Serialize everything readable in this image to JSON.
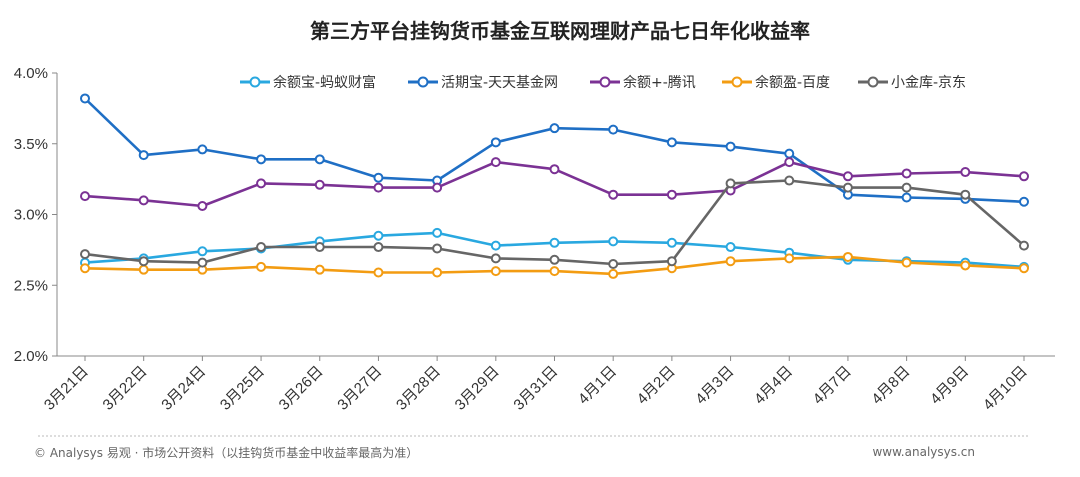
{
  "chart_data": {
    "type": "line",
    "title": "第三方平台挂钩货币基金互联网理财产品七日年化收益率",
    "xlabel": "",
    "ylabel": "",
    "ylim": [
      2.0,
      4.0
    ],
    "yticks": [
      2.0,
      2.5,
      3.0,
      3.5,
      4.0
    ],
    "ytick_labels": [
      "2.0%",
      "2.5%",
      "3.0%",
      "3.5%",
      "4.0%"
    ],
    "grid": false,
    "legend_position": "top",
    "categories": [
      "3月21日",
      "3月22日",
      "3月24日",
      "3月25日",
      "3月26日",
      "3月27日",
      "3月28日",
      "3月29日",
      "3月31日",
      "4月1日",
      "4月2日",
      "4月3日",
      "4月4日",
      "4月7日",
      "4月8日",
      "4月9日",
      "4月10日"
    ],
    "series": [
      {
        "name": "余额宝-蚂蚁财富",
        "color": "#29a8e0",
        "values": [
          2.66,
          2.69,
          2.74,
          2.76,
          2.81,
          2.85,
          2.87,
          2.78,
          2.8,
          2.81,
          2.8,
          2.77,
          2.73,
          2.68,
          2.67,
          2.66,
          2.63
        ]
      },
      {
        "name": "活期宝-天天基金网",
        "color": "#1f6fc5",
        "values": [
          3.82,
          3.42,
          3.46,
          3.39,
          3.39,
          3.26,
          3.24,
          3.51,
          3.61,
          3.6,
          3.51,
          3.48,
          3.43,
          3.14,
          3.12,
          3.11,
          3.09
        ]
      },
      {
        "name": "余额+-腾讯",
        "color": "#7b3294",
        "values": [
          3.13,
          3.1,
          3.06,
          3.22,
          3.21,
          3.19,
          3.19,
          3.37,
          3.32,
          3.14,
          3.14,
          3.17,
          3.37,
          3.27,
          3.29,
          3.3,
          3.27
        ]
      },
      {
        "name": "余额盈-百度",
        "color": "#f39c12",
        "values": [
          2.62,
          2.61,
          2.61,
          2.63,
          2.61,
          2.59,
          2.59,
          2.6,
          2.6,
          2.58,
          2.62,
          2.67,
          2.69,
          2.7,
          2.66,
          2.64,
          2.62
        ]
      },
      {
        "name": "小金库-京东",
        "color": "#666666",
        "values": [
          2.72,
          2.67,
          2.66,
          2.77,
          2.77,
          2.77,
          2.76,
          2.69,
          2.68,
          2.65,
          2.67,
          3.22,
          3.24,
          3.19,
          3.19,
          3.14,
          2.78
        ]
      }
    ]
  },
  "footer": {
    "source": "© Analysys 易观 · 市场公开资料（以挂钩货币基金中收益率最高为准）",
    "website": "www.analysys.cn"
  }
}
